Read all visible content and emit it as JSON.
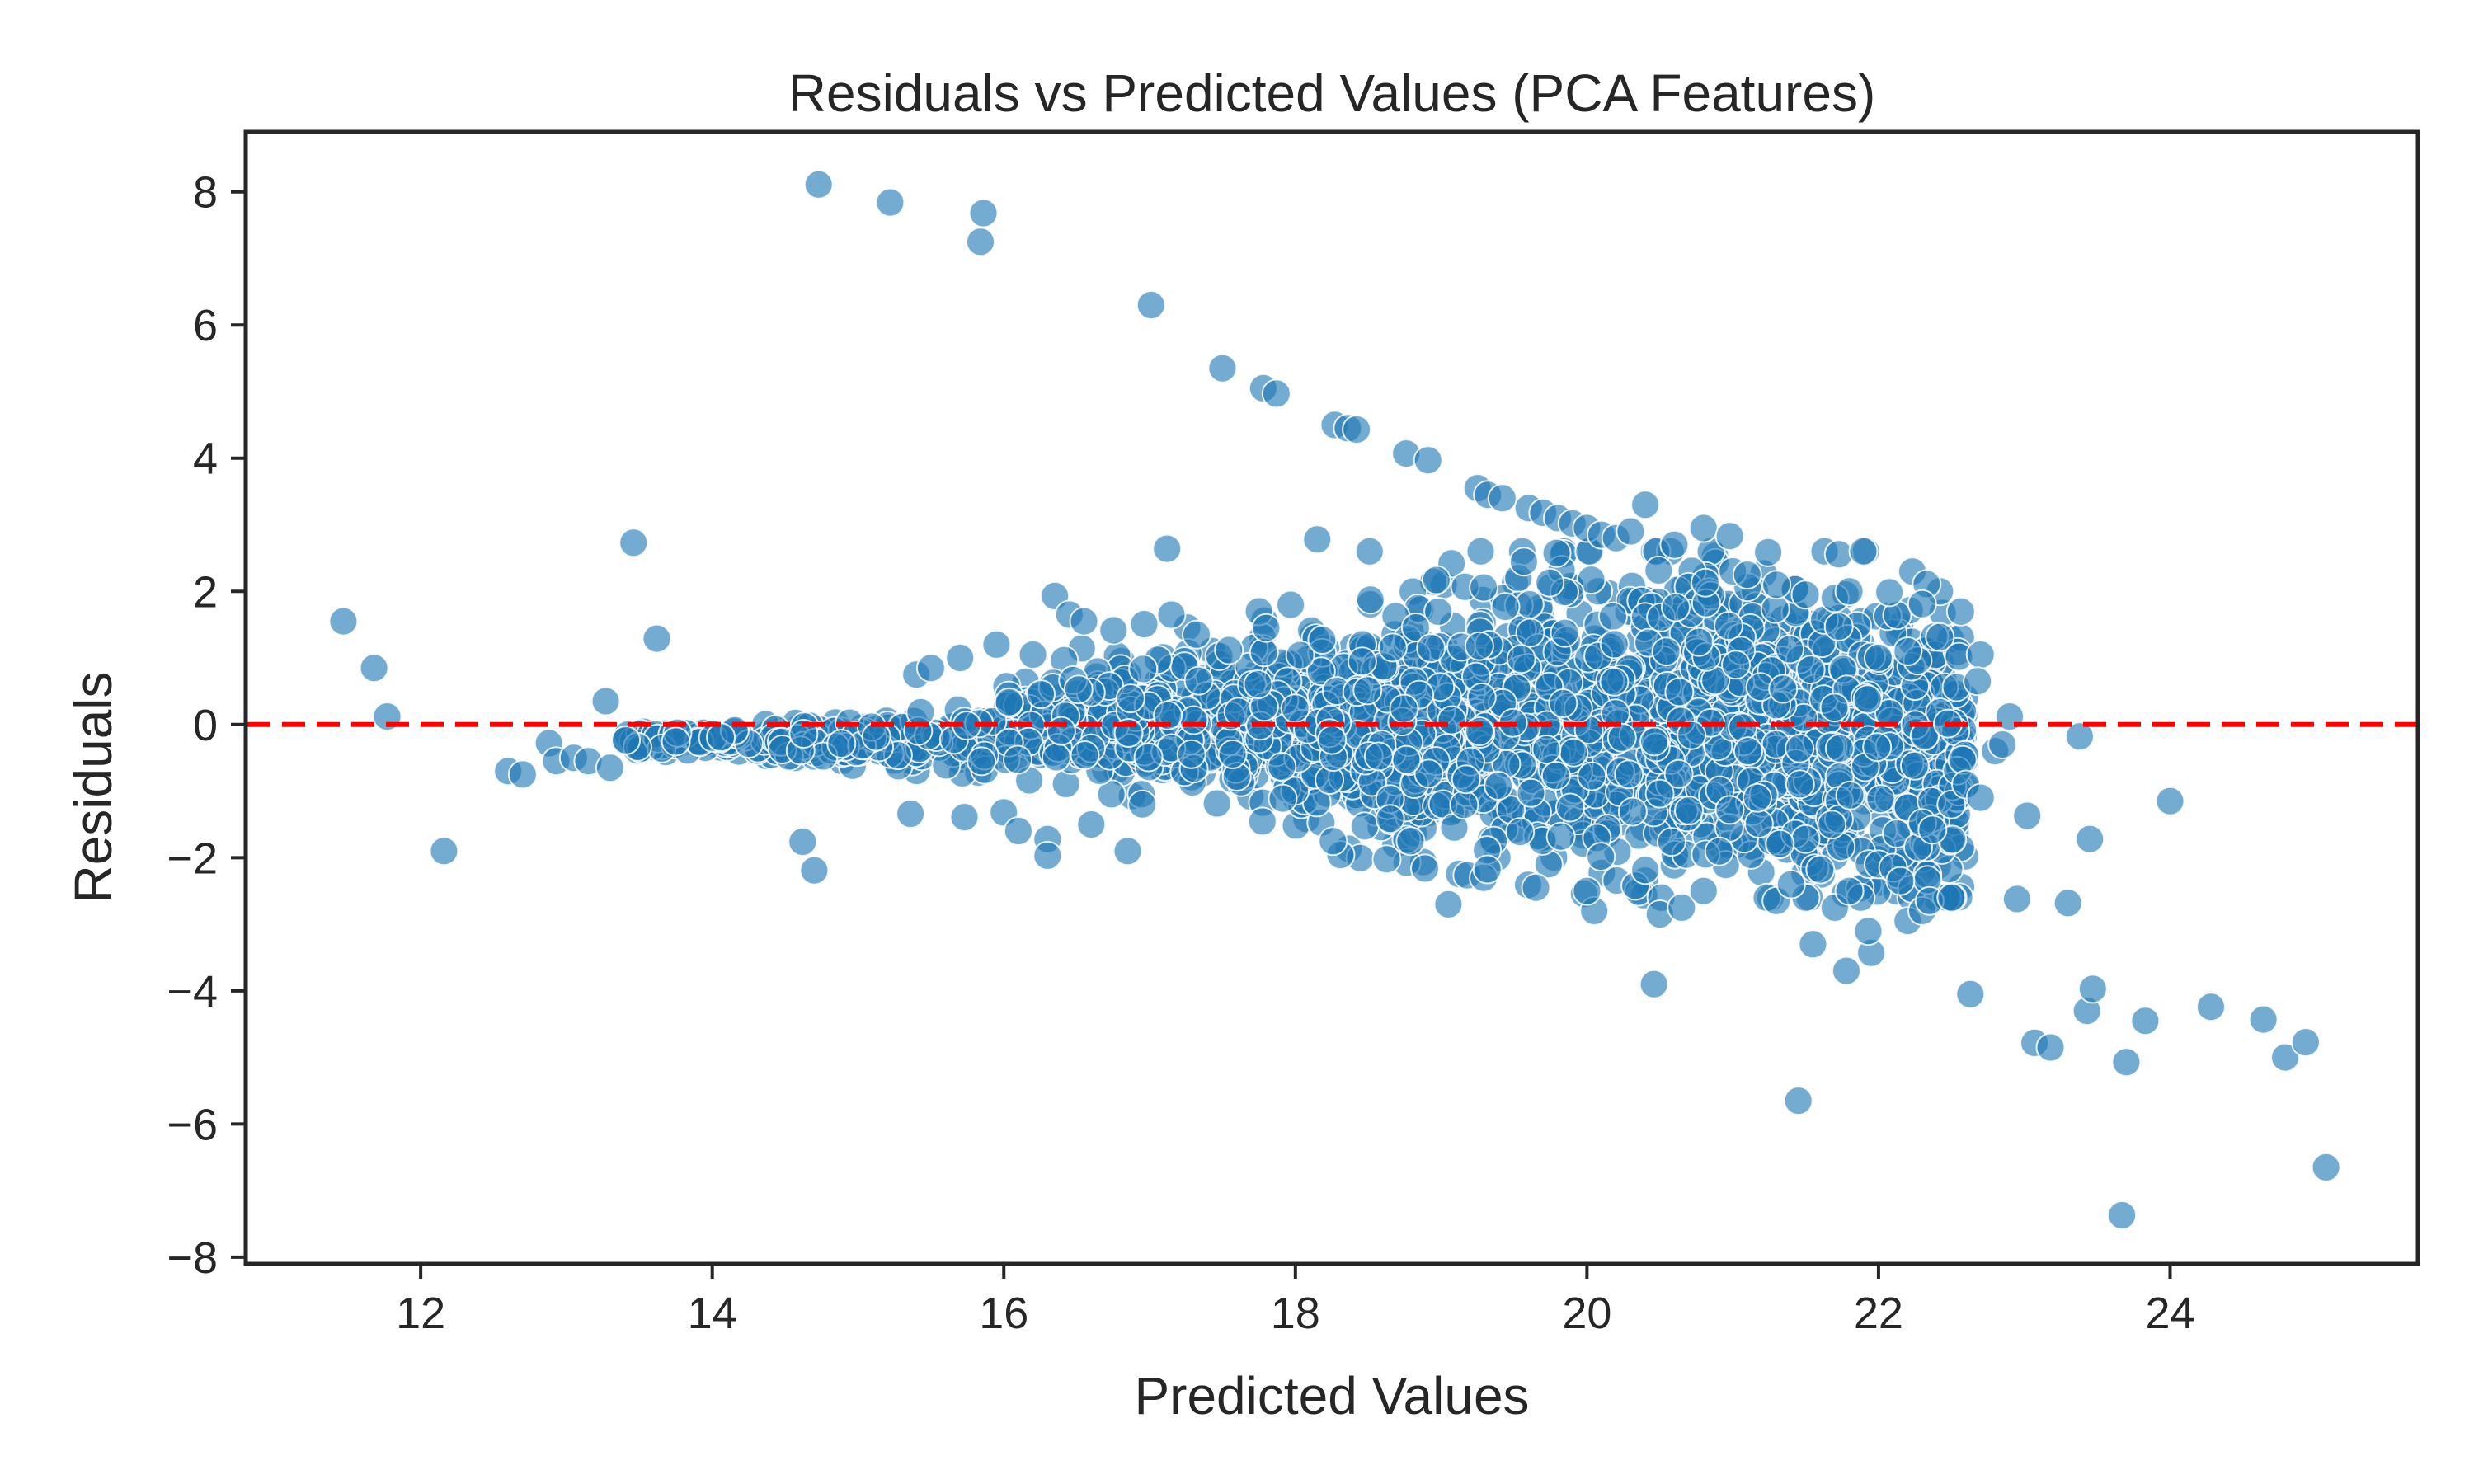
{
  "chart_data": {
    "type": "scatter",
    "title": "Residuals vs Predicted Values (PCA Features)",
    "xlabel": "Predicted Values",
    "ylabel": "Residuals",
    "xlim": [
      10.8,
      25.7
    ],
    "ylim": [
      -8.1,
      8.9
    ],
    "xticks": [
      12,
      14,
      16,
      18,
      20,
      22,
      24
    ],
    "yticks": [
      -8,
      -6,
      -4,
      -2,
      0,
      2,
      4,
      6,
      8
    ],
    "xtick_labels": [
      "12",
      "14",
      "16",
      "18",
      "20",
      "22",
      "24"
    ],
    "ytick_labels": [
      "−8",
      "−6",
      "−4",
      "−2",
      "0",
      "2",
      "4",
      "6",
      "8"
    ],
    "grid": false,
    "reference_line": {
      "y": 0,
      "style": "dashed",
      "color": "#ff0000"
    },
    "marker_color": "#1f77b4",
    "marker_edge_color": "#ffffff",
    "series": [
      {
        "points": [
          [
            11.47,
            1.55
          ],
          [
            11.68,
            0.85
          ],
          [
            11.77,
            0.12
          ],
          [
            12.16,
            -1.9
          ],
          [
            13.27,
            0.35
          ],
          [
            13.46,
            2.73
          ],
          [
            13.62,
            1.29
          ],
          [
            12.6,
            -0.7
          ],
          [
            12.7,
            -0.75
          ],
          [
            12.88,
            -0.28
          ],
          [
            12.93,
            -0.55
          ],
          [
            13.05,
            -0.5
          ],
          [
            13.15,
            -0.55
          ],
          [
            13.3,
            -0.65
          ],
          [
            14.62,
            -1.76
          ],
          [
            14.7,
            -2.19
          ],
          [
            15.36,
            -1.34
          ],
          [
            15.73,
            -1.39
          ],
          [
            16.0,
            -1.32
          ],
          [
            16.1,
            -1.6
          ],
          [
            16.3,
            -1.72
          ],
          [
            16.3,
            -1.97
          ],
          [
            16.6,
            -1.5
          ],
          [
            16.85,
            -1.9
          ],
          [
            16.95,
            -1.2
          ],
          [
            15.4,
            0.75
          ],
          [
            15.5,
            0.85
          ],
          [
            15.7,
            1.0
          ],
          [
            15.95,
            1.2
          ],
          [
            16.2,
            1.05
          ],
          [
            16.35,
            1.93
          ],
          [
            16.45,
            1.65
          ],
          [
            16.55,
            1.55
          ],
          [
            17.12,
            2.64
          ],
          [
            17.15,
            1.65
          ],
          [
            17.75,
            1.7
          ],
          [
            17.8,
            1.45
          ],
          [
            18.15,
            2.78
          ],
          [
            14.73,
            8.11
          ],
          [
            15.22,
            7.84
          ],
          [
            15.86,
            7.68
          ],
          [
            15.84,
            7.25
          ],
          [
            17.01,
            6.3
          ],
          [
            17.5,
            5.35
          ],
          [
            17.78,
            5.05
          ],
          [
            17.87,
            4.97
          ],
          [
            18.27,
            4.5
          ],
          [
            18.36,
            4.45
          ],
          [
            18.42,
            4.43
          ],
          [
            18.76,
            4.07
          ],
          [
            18.91,
            3.97
          ],
          [
            19.25,
            3.55
          ],
          [
            19.32,
            3.45
          ],
          [
            19.42,
            3.4
          ],
          [
            19.6,
            3.25
          ],
          [
            19.7,
            3.18
          ],
          [
            19.8,
            3.1
          ],
          [
            19.9,
            3.02
          ],
          [
            20.0,
            2.95
          ],
          [
            20.1,
            2.85
          ],
          [
            20.2,
            2.8
          ],
          [
            20.3,
            2.9
          ],
          [
            20.4,
            3.3
          ],
          [
            20.6,
            2.7
          ],
          [
            20.8,
            2.95
          ],
          [
            20.98,
            2.83
          ],
          [
            21.0,
            2.3
          ],
          [
            21.1,
            2.25
          ],
          [
            21.3,
            2.1
          ],
          [
            21.5,
            1.95
          ],
          [
            21.7,
            1.9
          ],
          [
            21.8,
            2.0
          ],
          [
            22.0,
            1.0
          ],
          [
            22.2,
            1.1
          ],
          [
            22.7,
            1.05
          ],
          [
            22.68,
            0.65
          ],
          [
            22.9,
            0.12
          ],
          [
            23.38,
            -0.18
          ],
          [
            23.45,
            -1.72
          ],
          [
            23.02,
            -1.37
          ],
          [
            22.95,
            -2.62
          ],
          [
            23.3,
            -2.68
          ],
          [
            24.0,
            -1.15
          ],
          [
            22.63,
            -4.05
          ],
          [
            23.07,
            -4.78
          ],
          [
            23.18,
            -4.85
          ],
          [
            23.43,
            -4.3
          ],
          [
            23.47,
            -3.97
          ],
          [
            23.83,
            -4.45
          ],
          [
            23.7,
            -5.07
          ],
          [
            23.67,
            -7.37
          ],
          [
            24.28,
            -4.24
          ],
          [
            24.64,
            -4.43
          ],
          [
            24.79,
            -5.0
          ],
          [
            24.93,
            -4.77
          ],
          [
            25.07,
            -6.65
          ],
          [
            20.46,
            -3.9
          ],
          [
            21.45,
            -5.65
          ],
          [
            21.55,
            -3.3
          ],
          [
            21.78,
            -3.7
          ],
          [
            21.95,
            -3.43
          ],
          [
            21.93,
            -3.1
          ],
          [
            22.2,
            -2.95
          ],
          [
            22.3,
            -2.8
          ],
          [
            22.35,
            -2.65
          ],
          [
            22.5,
            -2.6
          ],
          [
            21.5,
            -2.6
          ],
          [
            21.7,
            -2.75
          ],
          [
            21.8,
            -2.5
          ],
          [
            20.5,
            -2.85
          ],
          [
            20.65,
            -2.75
          ],
          [
            20.05,
            -2.8
          ],
          [
            19.05,
            -2.7
          ],
          [
            19.65,
            -2.45
          ],
          [
            20.0,
            -2.5
          ],
          [
            20.8,
            -2.5
          ],
          [
            21.3,
            -2.65
          ],
          [
            21.4,
            -2.4
          ],
          [
            22.0,
            -2.1
          ],
          [
            22.1,
            -2.15
          ],
          [
            22.15,
            -2.35
          ],
          [
            22.3,
            -1.48
          ],
          [
            22.37,
            -1.58
          ],
          [
            22.5,
            -1.2
          ],
          [
            22.6,
            -0.9
          ],
          [
            22.7,
            -1.1
          ],
          [
            22.8,
            -0.4
          ],
          [
            22.85,
            -0.3
          ]
        ]
      }
    ]
  }
}
